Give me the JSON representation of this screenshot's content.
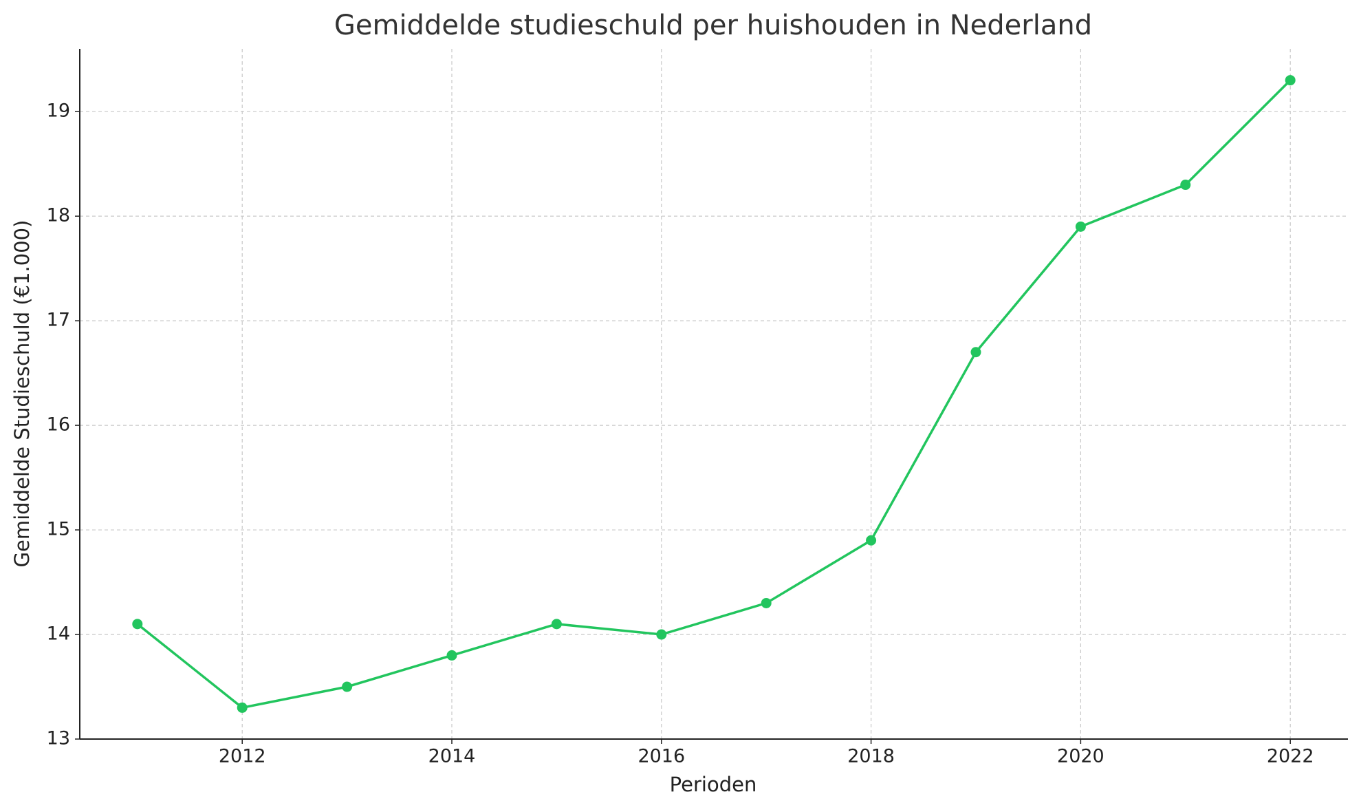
{
  "chart_data": {
    "type": "line",
    "title": "Gemiddelde studieschuld per huishouden in Nederland",
    "x_label": "Perioden",
    "y_label": "Gemiddelde Studieschuld (€1.000)",
    "x": [
      2011,
      2012,
      2013,
      2014,
      2015,
      2016,
      2017,
      2018,
      2019,
      2020,
      2021,
      2022
    ],
    "series": [
      {
        "name": "Gemiddelde studieschuld",
        "color": "#22c55e",
        "values": [
          14.1,
          13.3,
          13.5,
          13.8,
          14.1,
          14.0,
          14.3,
          14.9,
          16.7,
          17.9,
          18.3,
          19.3
        ]
      }
    ],
    "xlim": [
      2010.45,
      2022.55
    ],
    "xticks": [
      2012,
      2014,
      2016,
      2018,
      2020,
      2022
    ],
    "ylim": [
      13,
      19.6
    ],
    "yticks": [
      13,
      14,
      15,
      16,
      17,
      18,
      19
    ],
    "grid": true
  }
}
